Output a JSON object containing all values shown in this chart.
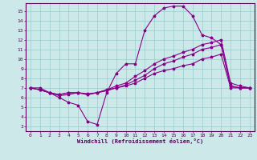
{
  "xlabel": "Windchill (Refroidissement éolien,°C)",
  "ylabel": "",
  "background_color": "#cce8e8",
  "grid_color": "#99cccc",
  "line_color": "#880088",
  "xlim": [
    -0.5,
    23.5
  ],
  "ylim": [
    2.5,
    15.8
  ],
  "xticks": [
    0,
    1,
    2,
    3,
    4,
    5,
    6,
    7,
    8,
    9,
    10,
    11,
    12,
    13,
    14,
    15,
    16,
    17,
    18,
    19,
    20,
    21,
    22,
    23
  ],
  "yticks": [
    3,
    4,
    5,
    6,
    7,
    8,
    9,
    10,
    11,
    12,
    13,
    14,
    15
  ],
  "series": [
    {
      "x": [
        0,
        1,
        2,
        3,
        4,
        5,
        6,
        7,
        8,
        9,
        10,
        11,
        12,
        13,
        14,
        15,
        16,
        17,
        18,
        19,
        20,
        21,
        22,
        23
      ],
      "y": [
        7.0,
        7.0,
        6.5,
        6.0,
        5.5,
        5.2,
        3.5,
        3.2,
        6.5,
        8.5,
        9.5,
        9.5,
        13.0,
        14.5,
        15.3,
        15.5,
        15.5,
        14.5,
        12.5,
        12.2,
        11.5,
        7.2,
        7.0,
        7.0
      ]
    },
    {
      "x": [
        0,
        1,
        2,
        3,
        4,
        5,
        6,
        7,
        8,
        9,
        10,
        11,
        12,
        13,
        14,
        15,
        16,
        17,
        18,
        19,
        20,
        21,
        22,
        23
      ],
      "y": [
        7.0,
        6.8,
        6.5,
        6.3,
        6.5,
        6.5,
        6.3,
        6.5,
        6.8,
        7.2,
        7.5,
        8.2,
        8.8,
        9.5,
        10.0,
        10.3,
        10.7,
        11.0,
        11.5,
        11.7,
        12.0,
        7.5,
        7.2,
        7.0
      ]
    },
    {
      "x": [
        0,
        1,
        2,
        3,
        4,
        5,
        6,
        7,
        8,
        9,
        10,
        11,
        12,
        13,
        14,
        15,
        16,
        17,
        18,
        19,
        20,
        21,
        22,
        23
      ],
      "y": [
        7.0,
        6.8,
        6.5,
        6.3,
        6.5,
        6.5,
        6.3,
        6.5,
        6.8,
        7.0,
        7.3,
        7.8,
        8.3,
        9.0,
        9.5,
        9.8,
        10.2,
        10.5,
        11.0,
        11.2,
        11.5,
        7.2,
        7.0,
        7.0
      ]
    },
    {
      "x": [
        0,
        1,
        2,
        3,
        4,
        5,
        6,
        7,
        8,
        9,
        10,
        11,
        12,
        13,
        14,
        15,
        16,
        17,
        18,
        19,
        20,
        21,
        22,
        23
      ],
      "y": [
        7.0,
        6.8,
        6.5,
        6.2,
        6.3,
        6.5,
        6.4,
        6.5,
        6.7,
        7.0,
        7.2,
        7.5,
        8.0,
        8.5,
        8.8,
        9.0,
        9.3,
        9.5,
        10.0,
        10.2,
        10.5,
        7.0,
        7.0,
        7.0
      ]
    }
  ]
}
